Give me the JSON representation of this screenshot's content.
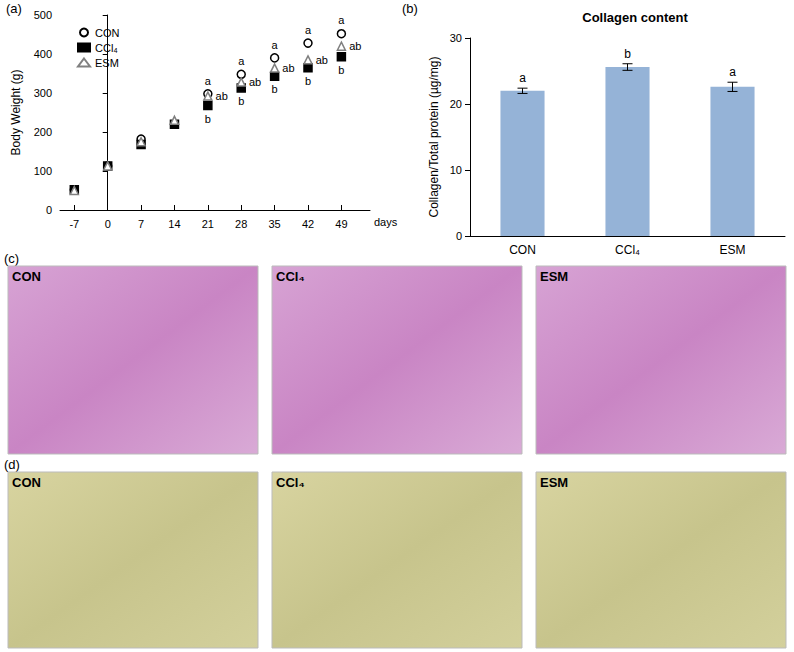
{
  "chart_data": [
    {
      "type": "scatter",
      "panel": "(a)",
      "x_label": "days",
      "y_label": "Body Weight (g)",
      "x": [
        -7,
        0,
        7,
        14,
        21,
        28,
        35,
        42,
        49
      ],
      "series": [
        {
          "name": "CON",
          "color": "#000000",
          "marker": "circle-open",
          "values": [
            52,
            113,
            182,
            220,
            298,
            348,
            390,
            428,
            452
          ],
          "value_labels": [
            null,
            null,
            null,
            null,
            "a",
            "a",
            "a",
            "a",
            "a"
          ]
        },
        {
          "name": "CCl₄",
          "color": "#000000",
          "marker": "square",
          "values": [
            52,
            113,
            168,
            220,
            268,
            313,
            343,
            365,
            393
          ],
          "value_labels": [
            null,
            null,
            null,
            null,
            "b",
            "b",
            "b",
            "b",
            "b"
          ]
        },
        {
          "name": "ESM",
          "color": "#808080",
          "marker": "triangle-open",
          "values": [
            50,
            113,
            175,
            230,
            292,
            328,
            364,
            385,
            420
          ],
          "value_labels": [
            null,
            null,
            null,
            null,
            "ab",
            "ab",
            "ab",
            "ab",
            "ab"
          ]
        }
      ],
      "xlim": [
        -10,
        55
      ],
      "xticks": [
        -7,
        0,
        7,
        14,
        21,
        28,
        35,
        42,
        49
      ],
      "ylim": [
        0,
        500
      ],
      "yticks": [
        0,
        100,
        200,
        300,
        400,
        500
      ],
      "grid": false,
      "legend": "upper left"
    },
    {
      "type": "bar",
      "panel": "(b)",
      "title": "Collagen content",
      "y_label": "Collagen/Total protein (µg/mg)",
      "categories": [
        "CON",
        "CCl₄",
        "ESM"
      ],
      "values": [
        22.0,
        25.6,
        22.6
      ],
      "errors": [
        0.4,
        0.5,
        0.7
      ],
      "value_labels": [
        "a",
        "b",
        "a"
      ],
      "color": "#95b3d7",
      "ylim": [
        0,
        30
      ],
      "yticks": [
        0,
        10,
        20,
        30
      ],
      "grid": false
    }
  ],
  "images": [
    {
      "panel": "(c)",
      "labels": [
        "CON",
        "CCl₄",
        "ESM"
      ]
    },
    {
      "panel": "(d)",
      "labels": [
        "CON",
        "CCl₄",
        "ESM"
      ]
    }
  ]
}
